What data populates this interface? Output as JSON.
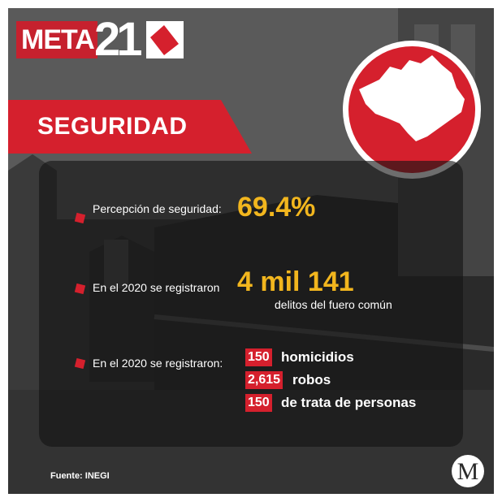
{
  "brand": {
    "logo_meta": "META",
    "logo_number": "21"
  },
  "section": {
    "title": "SEGURIDAD"
  },
  "stats": {
    "perception": {
      "label": "Percepción de seguridad:",
      "value": "69.4%"
    },
    "crimes": {
      "label": "En el 2020 se registraron",
      "value": "4 mil 141",
      "sublabel": "delitos del fuero común"
    },
    "breakdown": {
      "label": "En el 2020 se registraron:",
      "items": [
        {
          "value": "150",
          "label": "homicidios"
        },
        {
          "value": "2,615",
          "label": "robos"
        },
        {
          "value": "150",
          "label": "de trata de personas"
        }
      ]
    }
  },
  "footer": {
    "source": "Fuente:  INEGI",
    "publisher_mark": "M"
  },
  "colors": {
    "accent": "#d5202d",
    "highlight": "#f2b61e"
  },
  "icons": {
    "map": "state-map-icon",
    "bullet": "red-square-bullet"
  }
}
